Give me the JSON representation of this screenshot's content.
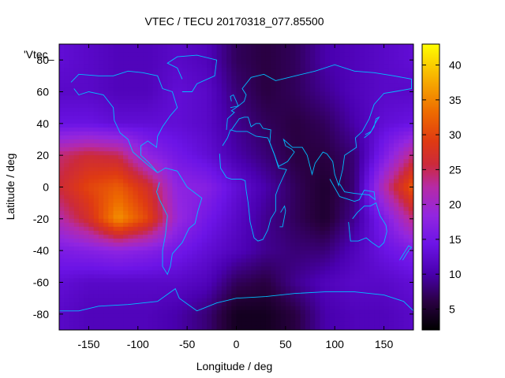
{
  "chart_data": {
    "type": "heatmap",
    "title": "VTEC / TECU 20170318_077.85500",
    "xlabel": "Longitude / deg",
    "ylabel": "Latitude / deg",
    "series_key_label": "'Vtec_",
    "xlim": [
      -180,
      180
    ],
    "ylim": [
      -90,
      90
    ],
    "x_ticks": [
      -150,
      -100,
      -50,
      0,
      50,
      100,
      150
    ],
    "y_ticks": [
      -80,
      -60,
      -40,
      -20,
      0,
      20,
      40,
      60,
      80
    ],
    "colorbar": {
      "range": [
        2,
        43
      ],
      "ticks": [
        5,
        10,
        15,
        20,
        25,
        30,
        35,
        40
      ],
      "palette": "black-purple-red-orange-yellow"
    },
    "grid_lon": [
      -180,
      -150,
      -120,
      -90,
      -60,
      -30,
      0,
      30,
      60,
      90,
      120,
      150,
      180
    ],
    "grid_lat": [
      80,
      60,
      40,
      20,
      0,
      -20,
      -40,
      -60,
      -80
    ],
    "vtec": [
      [
        13,
        12,
        11,
        11,
        12,
        11,
        7,
        6,
        7,
        10,
        11,
        12,
        13
      ],
      [
        12,
        12,
        11,
        11,
        13,
        12,
        8,
        6,
        7,
        9,
        11,
        12,
        12
      ],
      [
        14,
        14,
        13,
        13,
        13,
        12,
        9,
        7,
        6,
        7,
        10,
        13,
        14
      ],
      [
        24,
        26,
        25,
        18,
        15,
        13,
        10,
        8,
        6,
        6,
        8,
        16,
        24
      ],
      [
        26,
        30,
        32,
        27,
        18,
        17,
        13,
        10,
        7,
        5,
        8,
        22,
        32
      ],
      [
        22,
        27,
        36,
        30,
        19,
        15,
        12,
        9,
        7,
        5,
        9,
        16,
        24
      ],
      [
        16,
        17,
        18,
        17,
        15,
        13,
        11,
        9,
        8,
        8,
        11,
        14,
        16
      ],
      [
        13,
        12,
        12,
        12,
        12,
        11,
        7,
        6,
        9,
        11,
        12,
        12,
        13
      ],
      [
        12,
        11,
        11,
        11,
        10,
        8,
        4,
        4,
        6,
        10,
        11,
        11,
        12
      ]
    ],
    "land_color": "#00bfff"
  }
}
